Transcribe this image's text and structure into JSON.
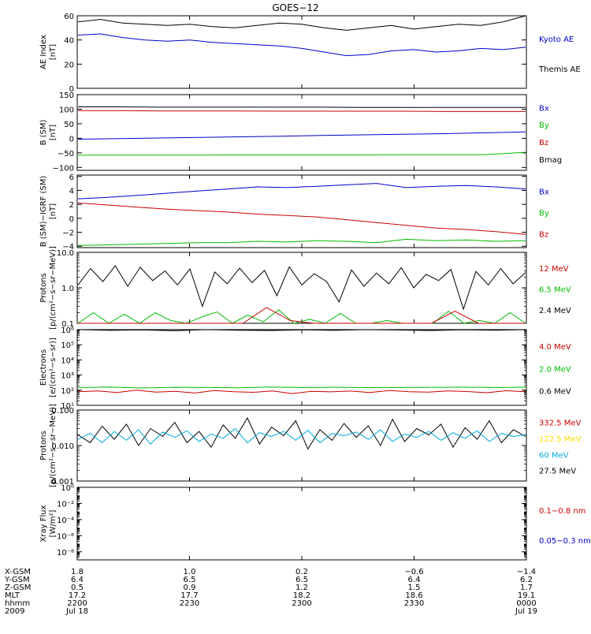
{
  "title": "GOES−12",
  "chart_data": [
    {
      "type": "line",
      "ylabel": "AE Index",
      "yunit": "[nT]",
      "ylim": [
        0,
        60
      ],
      "yticks": [
        0,
        20,
        40,
        60
      ],
      "legend": [
        {
          "name": "Kyoto AE",
          "color": "#0000cc"
        },
        {
          "name": "Themis AE",
          "color": "#000000"
        }
      ],
      "series": [
        {
          "name": "Kyoto AE",
          "color": "#0000cc",
          "values": [
            44,
            45,
            42,
            40,
            39,
            40,
            38,
            37,
            36,
            35,
            33,
            30,
            27,
            28,
            31,
            32,
            30,
            31,
            33,
            32,
            34
          ]
        },
        {
          "name": "Themis AE",
          "color": "#000000",
          "values": [
            55,
            57,
            54,
            53,
            52,
            53,
            51,
            50,
            52,
            54,
            53,
            50,
            48,
            50,
            52,
            49,
            51,
            53,
            52,
            55,
            62
          ]
        }
      ]
    },
    {
      "type": "line",
      "ylabel": "B (SM)",
      "yunit": "[nT]",
      "ylim": [
        -110,
        150
      ],
      "yticks": [
        -100,
        -50,
        0,
        50,
        100,
        150
      ],
      "legend": [
        {
          "name": "Bx",
          "color": "#0000cc"
        },
        {
          "name": "By",
          "color": "#00bb00"
        },
        {
          "name": "Bz",
          "color": "#cc0000"
        },
        {
          "name": "Bmag",
          "color": "#000000"
        }
      ],
      "series": [
        {
          "name": "Bmag",
          "color": "#000000",
          "values": [
            108,
            108,
            107,
            107,
            107,
            107,
            107,
            106,
            106,
            106,
            106,
            106
          ]
        },
        {
          "name": "Bz",
          "color": "#cc0000",
          "values": [
            95,
            95,
            94,
            94,
            94,
            93,
            93,
            93,
            93,
            92,
            92,
            92
          ]
        },
        {
          "name": "Bx",
          "color": "#0000cc",
          "values": [
            -3,
            -1,
            1,
            3,
            5,
            7,
            10,
            12,
            14,
            16,
            19,
            22
          ]
        },
        {
          "name": "By",
          "color": "#00bb00",
          "values": [
            -58,
            -58,
            -58,
            -58,
            -57,
            -57,
            -57,
            -57,
            -56,
            -56,
            -56,
            -48
          ]
        }
      ]
    },
    {
      "type": "line",
      "ylabel": "B (SM)−IGRF (SM)",
      "yunit": "[nT]",
      "ylim": [
        -4.2,
        6.2
      ],
      "yticks": [
        -4,
        -2,
        0,
        2,
        4,
        6
      ],
      "legend": [
        {
          "name": "Bx",
          "color": "#0000cc"
        },
        {
          "name": "By",
          "color": "#00bb00"
        },
        {
          "name": "Bz",
          "color": "#cc0000"
        }
      ],
      "series": [
        {
          "name": "Bx",
          "color": "#0000cc",
          "values": [
            2.8,
            3.0,
            3.3,
            3.6,
            3.9,
            4.2,
            4.5,
            4.4,
            4.6,
            4.8,
            5.0,
            4.4,
            4.6,
            4.7,
            4.5,
            4.2
          ]
        },
        {
          "name": "Bz",
          "color": "#cc0000",
          "values": [
            2.2,
            1.9,
            1.6,
            1.3,
            1.1,
            0.9,
            0.6,
            0.4,
            0.2,
            -0.2,
            -0.6,
            -1.0,
            -1.4,
            -1.6,
            -1.9,
            -2.3
          ]
        },
        {
          "name": "By",
          "color": "#00bb00",
          "values": [
            -3.9,
            -3.8,
            -3.7,
            -3.6,
            -3.5,
            -3.5,
            -3.3,
            -3.4,
            -3.2,
            -3.3,
            -3.5,
            -3.0,
            -3.2,
            -3.1,
            -3.3,
            -3.2
          ]
        }
      ]
    },
    {
      "type": "line",
      "ylabel": "Protons",
      "yunit": "[p/(cm²−s−sr−MeV)]",
      "yscale": "log",
      "ylim": [
        0.1,
        10
      ],
      "yticks": [
        0.1,
        1,
        10
      ],
      "yticklabels": [
        "0.1",
        "1.0",
        "10.0"
      ],
      "legend": [
        {
          "name": "12 MeV",
          "color": "#cc0000"
        },
        {
          "name": "6.5 MeV",
          "color": "#00bb00"
        },
        {
          "name": "2.4 MeV",
          "color": "#000000"
        }
      ],
      "series": [
        {
          "name": "2.4 MeV",
          "color": "#000000",
          "values": [
            1.2,
            3.5,
            1.5,
            4.2,
            1.1,
            3.8,
            1.6,
            3.0,
            1.2,
            3.4,
            0.3,
            2.8,
            1.3,
            3.6,
            1.4,
            3.1,
            0.6,
            3.9,
            1.2,
            2.5,
            1.5,
            0.4,
            3.2,
            1.1,
            2.6,
            1.3,
            3.7,
            1.0,
            2.4,
            1.6,
            3.3,
            0.25,
            2.9,
            1.2,
            3.5,
            1.3,
            2.7
          ]
        },
        {
          "name": "6.5 MeV",
          "color": "#00bb00",
          "values": [
            0.1,
            0.2,
            0.1,
            0.18,
            0.1,
            0.2,
            0.12,
            0.1,
            0.15,
            0.21,
            0.1,
            0.17,
            0.11,
            0.24,
            0.1,
            0.13,
            0.1,
            0.19,
            0.1,
            0.1,
            0.12,
            0.1,
            0.1,
            0.1,
            0.22,
            0.1,
            0.12,
            0.1,
            0.2,
            0.1
          ]
        },
        {
          "name": "12 MeV",
          "color": "#cc0000",
          "values": [
            0.1,
            0.1,
            0.1,
            0.1,
            0.1,
            0.1,
            0.1,
            0.1,
            0.28,
            0.12,
            0.1,
            0.1,
            0.1,
            0.1,
            0.1,
            0.1,
            0.22,
            0.1,
            0.1,
            0.1
          ]
        }
      ]
    },
    {
      "type": "line",
      "ylabel": "Electrons",
      "yunit": "[e/(cm²−s−sr)]",
      "yscale": "log",
      "ylim": [
        10,
        1000000
      ],
      "yticks": [
        10,
        100,
        1000,
        10000,
        100000,
        1000000
      ],
      "yticklabels": [
        "10¹",
        "10²",
        "10³",
        "10⁴",
        "10⁵",
        "10⁶"
      ],
      "legend": [
        {
          "name": "4.0 MeV",
          "color": "#cc0000"
        },
        {
          "name": "2.0 MeV",
          "color": "#00bb00"
        },
        {
          "name": "0.6 MeV",
          "color": "#000000"
        }
      ],
      "series": [
        {
          "name": "0.6 MeV",
          "color": "#000000",
          "values": [
            1000000,
            900000,
            950000,
            850000,
            1000000,
            920000,
            880000,
            960000,
            900000,
            1000000,
            940000,
            880000,
            980000,
            910000,
            1000000
          ]
        },
        {
          "name": "2.0 MeV",
          "color": "#00bb00",
          "values": [
            150,
            160,
            140,
            155,
            150,
            145,
            160,
            150,
            155,
            148,
            150,
            152,
            158,
            150,
            155
          ]
        },
        {
          "name": "4.0 MeV",
          "color": "#cc0000",
          "values": [
            80,
            90,
            70,
            100,
            75,
            85,
            65,
            95,
            80,
            72,
            90,
            60,
            85,
            78,
            88,
            70,
            95,
            80,
            74,
            90,
            82,
            68,
            92,
            80
          ]
        }
      ]
    },
    {
      "type": "line",
      "ylabel": "Protons",
      "yunit": "[p/(cm²−s−sr−MeV)]",
      "yscale": "log",
      "ylim": [
        0.001,
        0.1
      ],
      "yticks": [
        0.001,
        0.01,
        0.1
      ],
      "yticklabels": [
        "0.001",
        "0.010",
        "0.100"
      ],
      "legend": [
        {
          "name": "332.5 MeV",
          "color": "#cc0000"
        },
        {
          "name": "122.5 MeV",
          "color": "#ffdd00"
        },
        {
          "name": "60 MeV",
          "color": "#00aadd"
        },
        {
          "name": "27.5 MeV",
          "color": "#000000"
        }
      ],
      "series": [
        {
          "name": "27.5 MeV",
          "color": "#000000",
          "values": [
            0.02,
            0.012,
            0.035,
            0.015,
            0.04,
            0.01,
            0.03,
            0.018,
            0.045,
            0.012,
            0.025,
            0.009,
            0.038,
            0.016,
            0.06,
            0.011,
            0.033,
            0.019,
            0.05,
            0.008,
            0.028,
            0.014,
            0.042,
            0.017,
            0.036,
            0.01,
            0.055,
            0.013,
            0.03,
            0.02,
            0.04,
            0.009,
            0.032,
            0.015,
            0.05,
            0.012,
            0.028,
            0.018
          ]
        },
        {
          "name": "60 MeV",
          "color": "#00aadd",
          "values": [
            0.015,
            0.022,
            0.012,
            0.025,
            0.014,
            0.028,
            0.011,
            0.024,
            0.017,
            0.026,
            0.013,
            0.021,
            0.016,
            0.03,
            0.012,
            0.023,
            0.018,
            0.025,
            0.014,
            0.027,
            0.012,
            0.022,
            0.019,
            0.024,
            0.015,
            0.028,
            0.013,
            0.021,
            0.017,
            0.025,
            0.014,
            0.023,
            0.016,
            0.026,
            0.013,
            0.022,
            0.018,
            0.02
          ]
        }
      ]
    },
    {
      "type": "line",
      "ylabel": "Xray Flux",
      "yunit": "[W/m²]",
      "yscale": "log",
      "ylim": [
        1e-09,
        1
      ],
      "yticks": [
        1e-08,
        1e-06,
        0.0001,
        0.01,
        1
      ],
      "yticklabels": [
        "10⁻⁸",
        "10⁻⁶",
        "10⁻⁴",
        "10⁻²",
        "10⁰"
      ],
      "legend": [
        {
          "name": "0.1−0.8 nm",
          "color": "#cc0000"
        },
        {
          "name": "0.05−0.3 nm",
          "color": "#0000cc"
        }
      ],
      "series": []
    }
  ],
  "footer": {
    "rows": [
      {
        "label": "X-GSM",
        "values": [
          "1.8",
          "1.0",
          "0.2",
          "−0.6",
          "−1.4"
        ]
      },
      {
        "label": "Y-GSM",
        "values": [
          "6.4",
          "6.5",
          "6.5",
          "6.4",
          "6.2"
        ]
      },
      {
        "label": "Z-GSM",
        "values": [
          "0.5",
          "0.9",
          "1.2",
          "1.5",
          "1.7"
        ]
      },
      {
        "label": "MLT",
        "values": [
          "17.2",
          "17.7",
          "18.2",
          "18.6",
          "19.1"
        ]
      },
      {
        "label": "hhmm",
        "values": [
          "2200",
          "2230",
          "2300",
          "2330",
          "0000"
        ]
      },
      {
        "label": "2009",
        "values": [
          "Jul 18",
          "",
          "",
          "",
          "Jul 19"
        ]
      }
    ]
  }
}
